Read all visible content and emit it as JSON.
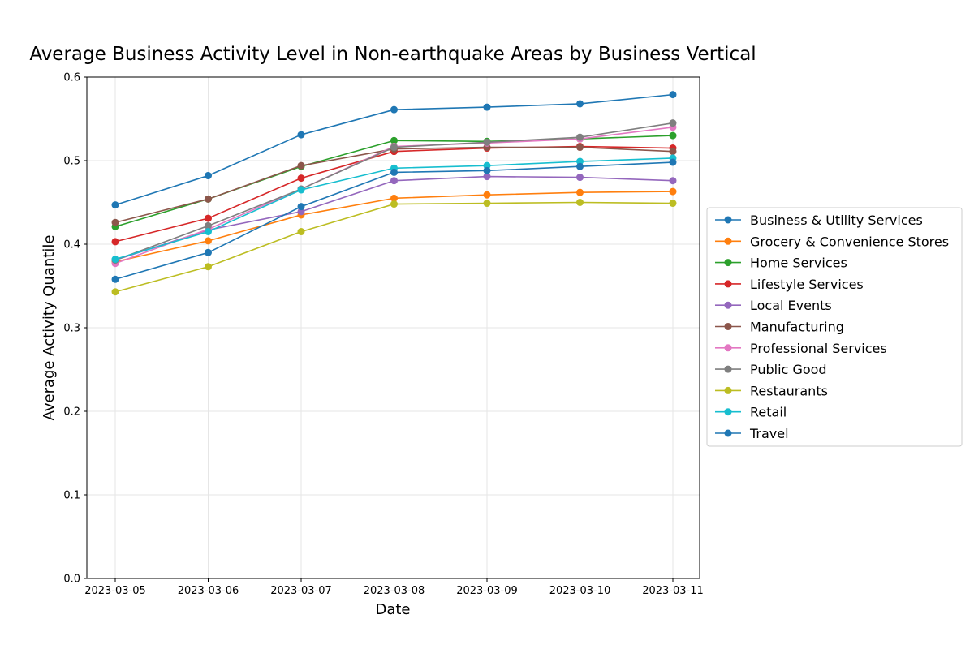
{
  "chart_data": {
    "type": "line",
    "title": "Average Business Activity Level in Non-earthquake Areas by Business Vertical",
    "xlabel": "Date",
    "ylabel": "Average Activity Quantile",
    "categories": [
      "2023-03-05",
      "2023-03-06",
      "2023-03-07",
      "2023-03-08",
      "2023-03-09",
      "2023-03-10",
      "2023-03-11"
    ],
    "ylim": [
      0,
      0.6
    ],
    "yticks": [
      "0.0",
      "0.1",
      "0.2",
      "0.3",
      "0.4",
      "0.5",
      "0.6"
    ],
    "grid": true,
    "legend_position": "right",
    "series": [
      {
        "name": "Business & Utility Services",
        "color": "#1f77b4",
        "values": [
          0.447,
          0.482,
          0.531,
          0.561,
          0.564,
          0.568,
          0.579
        ]
      },
      {
        "name": "Grocery & Convenience Stores",
        "color": "#ff7f0e",
        "values": [
          0.379,
          0.404,
          0.435,
          0.455,
          0.459,
          0.462,
          0.463
        ]
      },
      {
        "name": "Home Services",
        "color": "#2ca02c",
        "values": [
          0.421,
          0.454,
          0.493,
          0.524,
          0.523,
          0.526,
          0.53
        ]
      },
      {
        "name": "Lifestyle Services",
        "color": "#d62728",
        "values": [
          0.403,
          0.431,
          0.479,
          0.511,
          0.515,
          0.517,
          0.515
        ]
      },
      {
        "name": "Local Events",
        "color": "#9467bd",
        "values": [
          0.381,
          0.417,
          0.439,
          0.476,
          0.481,
          0.48,
          0.476
        ]
      },
      {
        "name": "Manufacturing",
        "color": "#8c564b",
        "values": [
          0.426,
          0.454,
          0.494,
          0.514,
          0.516,
          0.516,
          0.511
        ]
      },
      {
        "name": "Professional Services",
        "color": "#e377c2",
        "values": [
          0.377,
          0.418,
          0.466,
          0.517,
          0.521,
          0.526,
          0.54
        ]
      },
      {
        "name": "Public Good",
        "color": "#7f7f7f",
        "values": [
          0.381,
          0.422,
          0.466,
          0.516,
          0.522,
          0.528,
          0.545
        ]
      },
      {
        "name": "Restaurants",
        "color": "#bcbd22",
        "values": [
          0.343,
          0.373,
          0.415,
          0.448,
          0.449,
          0.45,
          0.449
        ]
      },
      {
        "name": "Retail",
        "color": "#17becf",
        "values": [
          0.382,
          0.415,
          0.465,
          0.491,
          0.494,
          0.499,
          0.503
        ]
      },
      {
        "name": "Travel",
        "color": "#1f77b4",
        "values": [
          0.358,
          0.39,
          0.445,
          0.486,
          0.488,
          0.493,
          0.498
        ]
      }
    ]
  }
}
